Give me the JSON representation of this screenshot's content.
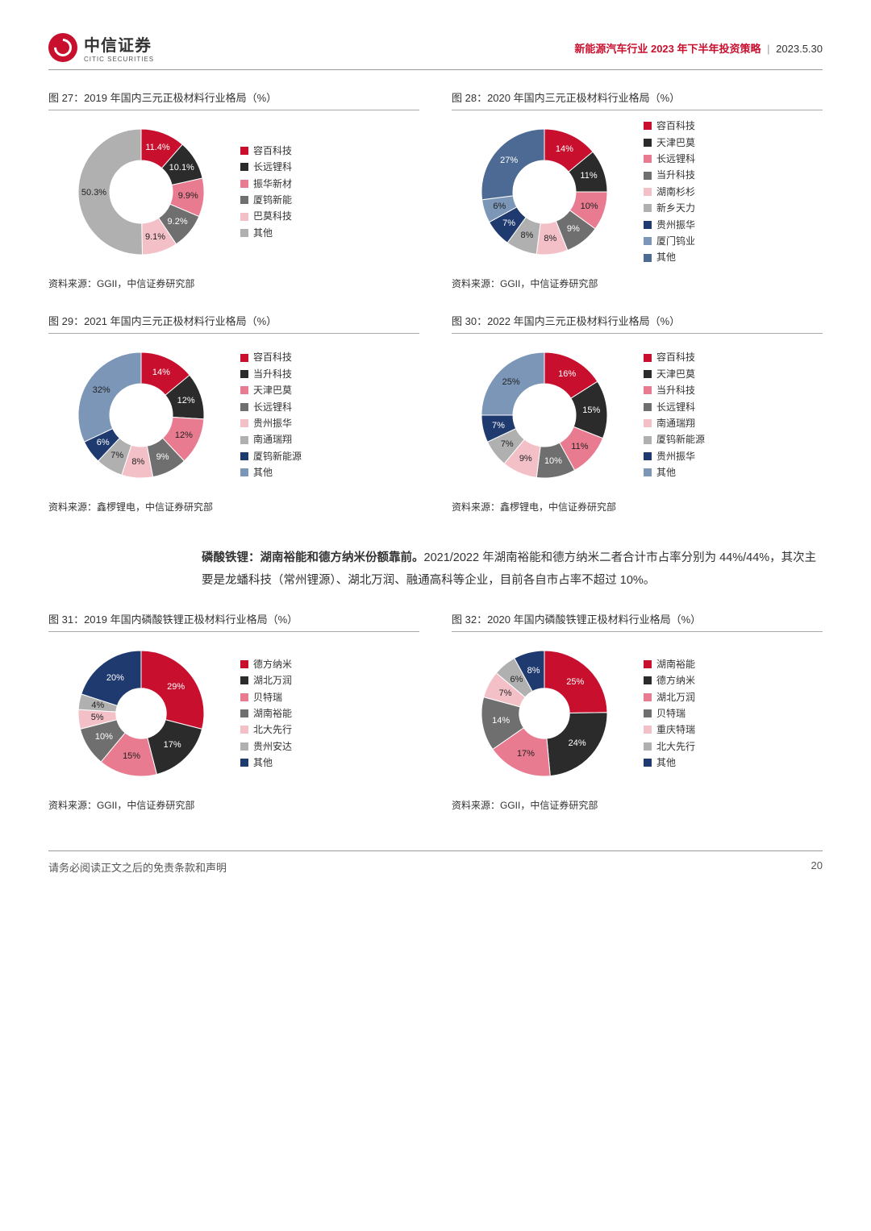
{
  "header": {
    "logo_cn": "中信证券",
    "logo_en": "CITIC SECURITIES",
    "title_red": "新能源汽车行业 2023 年下半年投资策略",
    "date": "2023.5.30"
  },
  "footer": {
    "disclaimer": "请务必阅读正文之后的免责条款和声明",
    "page": "20"
  },
  "body_para": "磷酸铁锂：湖南裕能和德方纳米份额靠前。2021/2022 年湖南裕能和德方纳米二者合计市占率分别为 44%/44%，其次主要是龙蟠科技（常州锂源）、湖北万润、融通高科等企业，目前各自市占率不超过 10%。",
  "body_bold_prefix": "磷酸铁锂：湖南裕能和德方纳米份额靠前。",
  "palette": {
    "red": "#c8102e",
    "black": "#2b2b2b",
    "pink": "#e97b90",
    "darkgray": "#6f6f6f",
    "ltpink": "#f3c0c8",
    "ltgray": "#b0b0b0",
    "navy": "#1f3a6f",
    "steel": "#7c96b8",
    "medgray": "#8a8a8a"
  },
  "charts": [
    {
      "id": "c27",
      "title": "图 27：2019 年国内三元正极材料行业格局（%）",
      "source": "资料来源：GGII，中信证券研究部",
      "inner": 0.5,
      "slices": [
        {
          "label": "容百科技",
          "value": 11.4,
          "color": "#c8102e",
          "txt": "11.4%"
        },
        {
          "label": "长远锂科",
          "value": 10.1,
          "color": "#2b2b2b",
          "txt": "10.1%"
        },
        {
          "label": "振华新材",
          "value": 9.9,
          "color": "#e97b90",
          "txt": "9.9%"
        },
        {
          "label": "厦钨新能",
          "value": 9.2,
          "color": "#6f6f6f",
          "txt": "9.2%"
        },
        {
          "label": "巴莫科技",
          "value": 9.1,
          "color": "#f3c0c8",
          "txt": "9.1%"
        },
        {
          "label": "其他",
          "value": 50.3,
          "color": "#b0b0b0",
          "txt": "50.3%"
        }
      ]
    },
    {
      "id": "c28",
      "title": "图 28：2020 年国内三元正极材料行业格局（%）",
      "source": "资料来源：GGII，中信证券研究部",
      "inner": 0.5,
      "slices": [
        {
          "label": "容百科技",
          "value": 14,
          "color": "#c8102e",
          "txt": "14%"
        },
        {
          "label": "天津巴莫",
          "value": 11,
          "color": "#2b2b2b",
          "txt": "11%"
        },
        {
          "label": "长远锂科",
          "value": 10,
          "color": "#e97b90",
          "txt": "10%"
        },
        {
          "label": "当升科技",
          "value": 9,
          "color": "#6f6f6f",
          "txt": "9%"
        },
        {
          "label": "湖南杉杉",
          "value": 8,
          "color": "#f3c0c8",
          "txt": "8%"
        },
        {
          "label": "新乡天力",
          "value": 8,
          "color": "#b0b0b0",
          "txt": "8%"
        },
        {
          "label": "贵州振华",
          "value": 7,
          "color": "#1f3a6f",
          "txt": "7%"
        },
        {
          "label": "厦门钨业",
          "value": 6,
          "color": "#7c96b8",
          "txt": "6%"
        },
        {
          "label": "其他",
          "value": 27,
          "color": "#4d6a94",
          "txt": "27%"
        }
      ]
    },
    {
      "id": "c29",
      "title": "图 29：2021 年国内三元正极材料行业格局（%）",
      "source": "资料来源：鑫椤锂电，中信证券研究部",
      "inner": 0.5,
      "slices": [
        {
          "label": "容百科技",
          "value": 14,
          "color": "#c8102e",
          "txt": "14%"
        },
        {
          "label": "当升科技",
          "value": 12,
          "color": "#2b2b2b",
          "txt": "12%"
        },
        {
          "label": "天津巴莫",
          "value": 12,
          "color": "#e97b90",
          "txt": "12%"
        },
        {
          "label": "长远锂科",
          "value": 9,
          "color": "#6f6f6f",
          "txt": "9%"
        },
        {
          "label": "贵州振华",
          "value": 8,
          "color": "#f3c0c8",
          "txt": "8%"
        },
        {
          "label": "南通瑞翔",
          "value": 7,
          "color": "#b0b0b0",
          "txt": "7%"
        },
        {
          "label": "厦钨新能源",
          "value": 6,
          "color": "#1f3a6f",
          "txt": "6%"
        },
        {
          "label": "其他",
          "value": 32,
          "color": "#7c96b8",
          "txt": "32%"
        }
      ]
    },
    {
      "id": "c30",
      "title": "图 30：2022 年国内三元正极材料行业格局（%）",
      "source": "资料来源：鑫椤锂电，中信证券研究部",
      "inner": 0.5,
      "slices": [
        {
          "label": "容百科技",
          "value": 16,
          "color": "#c8102e",
          "txt": "16%"
        },
        {
          "label": "天津巴莫",
          "value": 15,
          "color": "#2b2b2b",
          "txt": "15%"
        },
        {
          "label": "当升科技",
          "value": 11,
          "color": "#e97b90",
          "txt": "11%"
        },
        {
          "label": "长远锂科",
          "value": 10,
          "color": "#6f6f6f",
          "txt": "10%"
        },
        {
          "label": "南通瑞翔",
          "value": 9,
          "color": "#f3c0c8",
          "txt": "9%"
        },
        {
          "label": "厦钨新能源",
          "value": 7,
          "color": "#b0b0b0",
          "txt": "7%"
        },
        {
          "label": "贵州振华",
          "value": 7,
          "color": "#1f3a6f",
          "txt": "7%"
        },
        {
          "label": "其他",
          "value": 25,
          "color": "#7c96b8",
          "txt": "25%"
        }
      ]
    },
    {
      "id": "c31",
      "title": "图 31：2019 年国内磷酸铁锂正极材料行业格局（%）",
      "source": "资料来源：GGII，中信证券研究部",
      "inner": 0.4,
      "slices": [
        {
          "label": "德方纳米",
          "value": 29,
          "color": "#c8102e",
          "txt": "29%"
        },
        {
          "label": "湖北万润",
          "value": 17,
          "color": "#2b2b2b",
          "txt": "17%"
        },
        {
          "label": "贝特瑞",
          "value": 15,
          "color": "#e97b90",
          "txt": "15%"
        },
        {
          "label": "湖南裕能",
          "value": 10,
          "color": "#6f6f6f",
          "txt": "10%"
        },
        {
          "label": "北大先行",
          "value": 5,
          "color": "#f3c0c8",
          "txt": "5%"
        },
        {
          "label": "贵州安达",
          "value": 4,
          "color": "#b0b0b0",
          "txt": "4%"
        },
        {
          "label": "其他",
          "value": 20,
          "color": "#1f3a6f",
          "txt": "20%"
        }
      ]
    },
    {
      "id": "c32",
      "title": "图 32：2020 年国内磷酸铁锂正极材料行业格局（%）",
      "source": "资料来源：GGII，中信证券研究部",
      "inner": 0.4,
      "slices": [
        {
          "label": "湖南裕能",
          "value": 25,
          "color": "#c8102e",
          "txt": "25%"
        },
        {
          "label": "德方纳米",
          "value": 24,
          "color": "#2b2b2b",
          "txt": "24%"
        },
        {
          "label": "湖北万润",
          "value": 17,
          "color": "#e97b90",
          "txt": "17%"
        },
        {
          "label": "贝特瑞",
          "value": 14,
          "color": "#6f6f6f",
          "txt": "14%"
        },
        {
          "label": "重庆特瑞",
          "value": 7,
          "color": "#f3c0c8",
          "txt": "7%"
        },
        {
          "label": "北大先行",
          "value": 6,
          "color": "#b0b0b0",
          "txt": "6%"
        },
        {
          "label": "其他",
          "value": 8,
          "color": "#1f3a6f",
          "txt": "8%"
        }
      ]
    }
  ]
}
